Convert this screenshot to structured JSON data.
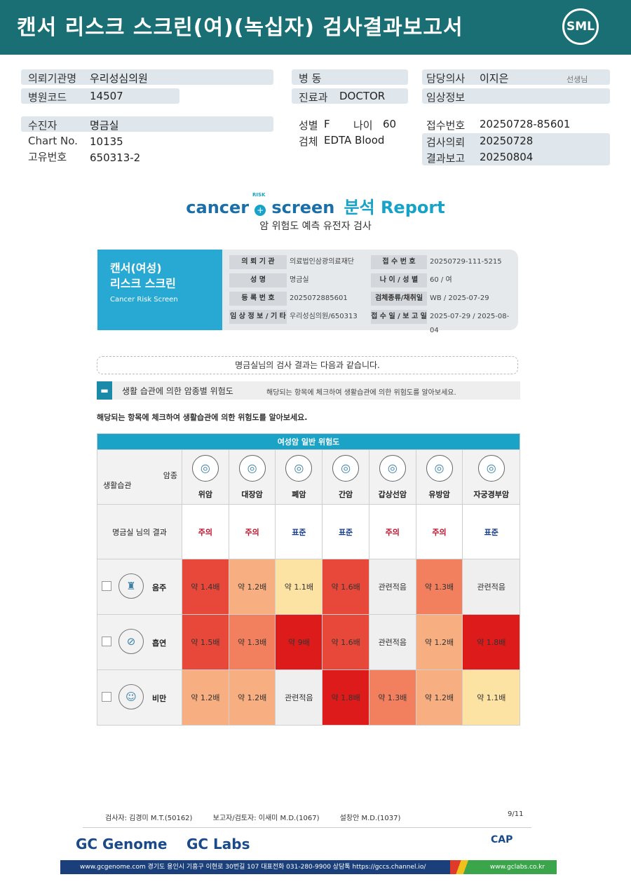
{
  "header": {
    "title": "캔서 리스크 스크린(여)(녹십자) 검사결과보고서",
    "logo": "SML"
  },
  "info": {
    "institution_label": "의뢰기관명",
    "institution": "우리성심의원",
    "hospital_code_label": "병원코드",
    "hospital_code": "14507",
    "ward_label": "병 동",
    "ward": "",
    "dept_label": "진료과",
    "dept": "DOCTOR",
    "doctor_label": "담당의사",
    "doctor": "이지은",
    "doctor_suffix": "선생님",
    "clinical_label": "임상정보",
    "clinical": "",
    "patient_label": "수진자",
    "patient": "명금실",
    "chart_label": "Chart No.",
    "chart": "10135",
    "uid_label": "고유번호",
    "uid": "650313-2",
    "sex_label": "성별",
    "sex": "F",
    "age_label": "나이",
    "age": "60",
    "specimen_label": "검체",
    "specimen": "EDTA Blood",
    "receipt_label": "접수번호",
    "receipt": "20250728-85601",
    "request_label": "검사의뢰",
    "request": "20250728",
    "report_label": "결과보고",
    "report": "20250804"
  },
  "brand": {
    "cancer": "cancer",
    "risk": "RISK",
    "screen": "screen",
    "report": "분석 Report",
    "subtitle": "암 위험도 예측 유전자 검사"
  },
  "card": {
    "title1": "캔서(여성)",
    "title2": "리스크 스크린",
    "title_en": "Cancer Risk Screen",
    "rows": [
      {
        "k1": "의 뢰 기 관",
        "v1": "의료법인삼광의료재단",
        "k2": "접 수 번 호",
        "v2": "20250729-111-5215"
      },
      {
        "k1": "성 명",
        "v1": "명금실",
        "k2": "나 이 / 성 별",
        "v2": "60 / 여"
      },
      {
        "k1": "등 록 번 호",
        "v1": "2025072885601",
        "k2": "검체종류/채취일",
        "v2": "WB / 2025-07-29"
      },
      {
        "k1": "임 상 정 보 / 기 타",
        "v1": "우리성심의원/650313",
        "k2": "접 수 일 / 보 고 일",
        "v2": "2025-07-29 / 2025-08-04"
      }
    ]
  },
  "notice": "명금실님의 검사 결과는 다음과 같습니다.",
  "section": {
    "title": "생활 습관에 의한 암종별 위험도",
    "desc": "해당되는 항목에 체크하여 생활습관에 의한 위험도를 알아보세요."
  },
  "instruction": "해당되는 항목에 체크하여 생활습관에 의한 위험도를 알아보세요.",
  "table": {
    "title": "여성암 일반 위험도",
    "corner_top": "암종",
    "corner_bottom": "생활습관",
    "cancers": [
      "위암",
      "대장암",
      "폐암",
      "간암",
      "갑상선암",
      "유방암",
      "자궁경부암"
    ],
    "result_label": "명금실 님의 결과",
    "results": [
      "주의",
      "주의",
      "표준",
      "표준",
      "주의",
      "주의",
      "표준"
    ],
    "result_colors": [
      "#c0102a",
      "#c0102a",
      "#1a3f8a",
      "#1a3f8a",
      "#c0102a",
      "#c0102a",
      "#1a3f8a"
    ],
    "habits": [
      {
        "name": "음주",
        "cells": [
          "약 1.4배",
          "약 1.2배",
          "약 1.1배",
          "약 1.6배",
          "관련적음",
          "약 1.3배",
          "관련적음"
        ],
        "colors": [
          "#e8483a",
          "#f7ae80",
          "#fde3a3",
          "#e8483a",
          "#efefef",
          "#f2805f",
          "#efefef"
        ]
      },
      {
        "name": "흡연",
        "cells": [
          "약 1.5배",
          "약 1.3배",
          "약 9배",
          "약 1.6배",
          "관련적음",
          "약 1.2배",
          "약 1.8배"
        ],
        "colors": [
          "#e8483a",
          "#f2805f",
          "#de1b1b",
          "#e8483a",
          "#efefef",
          "#f7ae80",
          "#de1b1b"
        ]
      },
      {
        "name": "비만",
        "cells": [
          "약 1.2배",
          "약 1.2배",
          "관련적음",
          "약 1.8배",
          "약 1.3배",
          "약 1.2배",
          "약 1.1배"
        ],
        "colors": [
          "#f7ae80",
          "#f7ae80",
          "#efefef",
          "#de1b1b",
          "#f2805f",
          "#f7ae80",
          "#fde3a3"
        ]
      }
    ]
  },
  "signatures": {
    "tester": "검사자: 김경미 M.T.(50162)",
    "reporter": "보고자/검토자: 이새미 M.D.(1067)",
    "third": "설창안 M.D.(1037)",
    "page": "9/11"
  },
  "footer": {
    "gc_genome": "GC Genome",
    "gc_labs": "GC Labs",
    "cap": "CAP",
    "address": "www.gcgenome.com 경기도 용인시 기흥구 이현로 30번길 107 대표전화 031-280-9900 상담톡 https://gccs.channel.io/",
    "site": "www.gclabs.co.kr"
  }
}
